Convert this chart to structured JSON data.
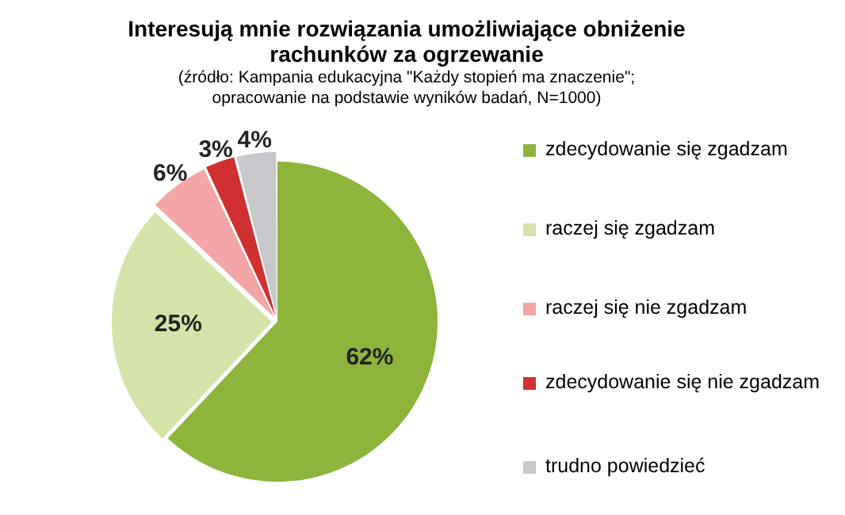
{
  "chart_data": {
    "type": "pie",
    "title": "Interesują mnie rozwiązania umożliwiające obniżenie rachunków za ogrzewanie",
    "subtitle": "(źródło: Kampania edukacyjna \"Każdy stopień ma znaczenie\"; opracowanie na podstawie wyników badań, N=1000)",
    "categories": [
      "zdecydowanie się zgadzam",
      "raczej się zgadzam",
      "raczej się nie zgadzam",
      "zdecydowanie się nie zgadzam",
      "trudno powiedzieć"
    ],
    "values": [
      62,
      25,
      6,
      3,
      4
    ],
    "colors": [
      "#8db53c",
      "#d4e4a8",
      "#f4a5a5",
      "#d03030",
      "#c8c8cc"
    ],
    "value_labels": [
      "62%",
      "25%",
      "6%",
      "3%",
      "4%"
    ],
    "legend": "right"
  }
}
